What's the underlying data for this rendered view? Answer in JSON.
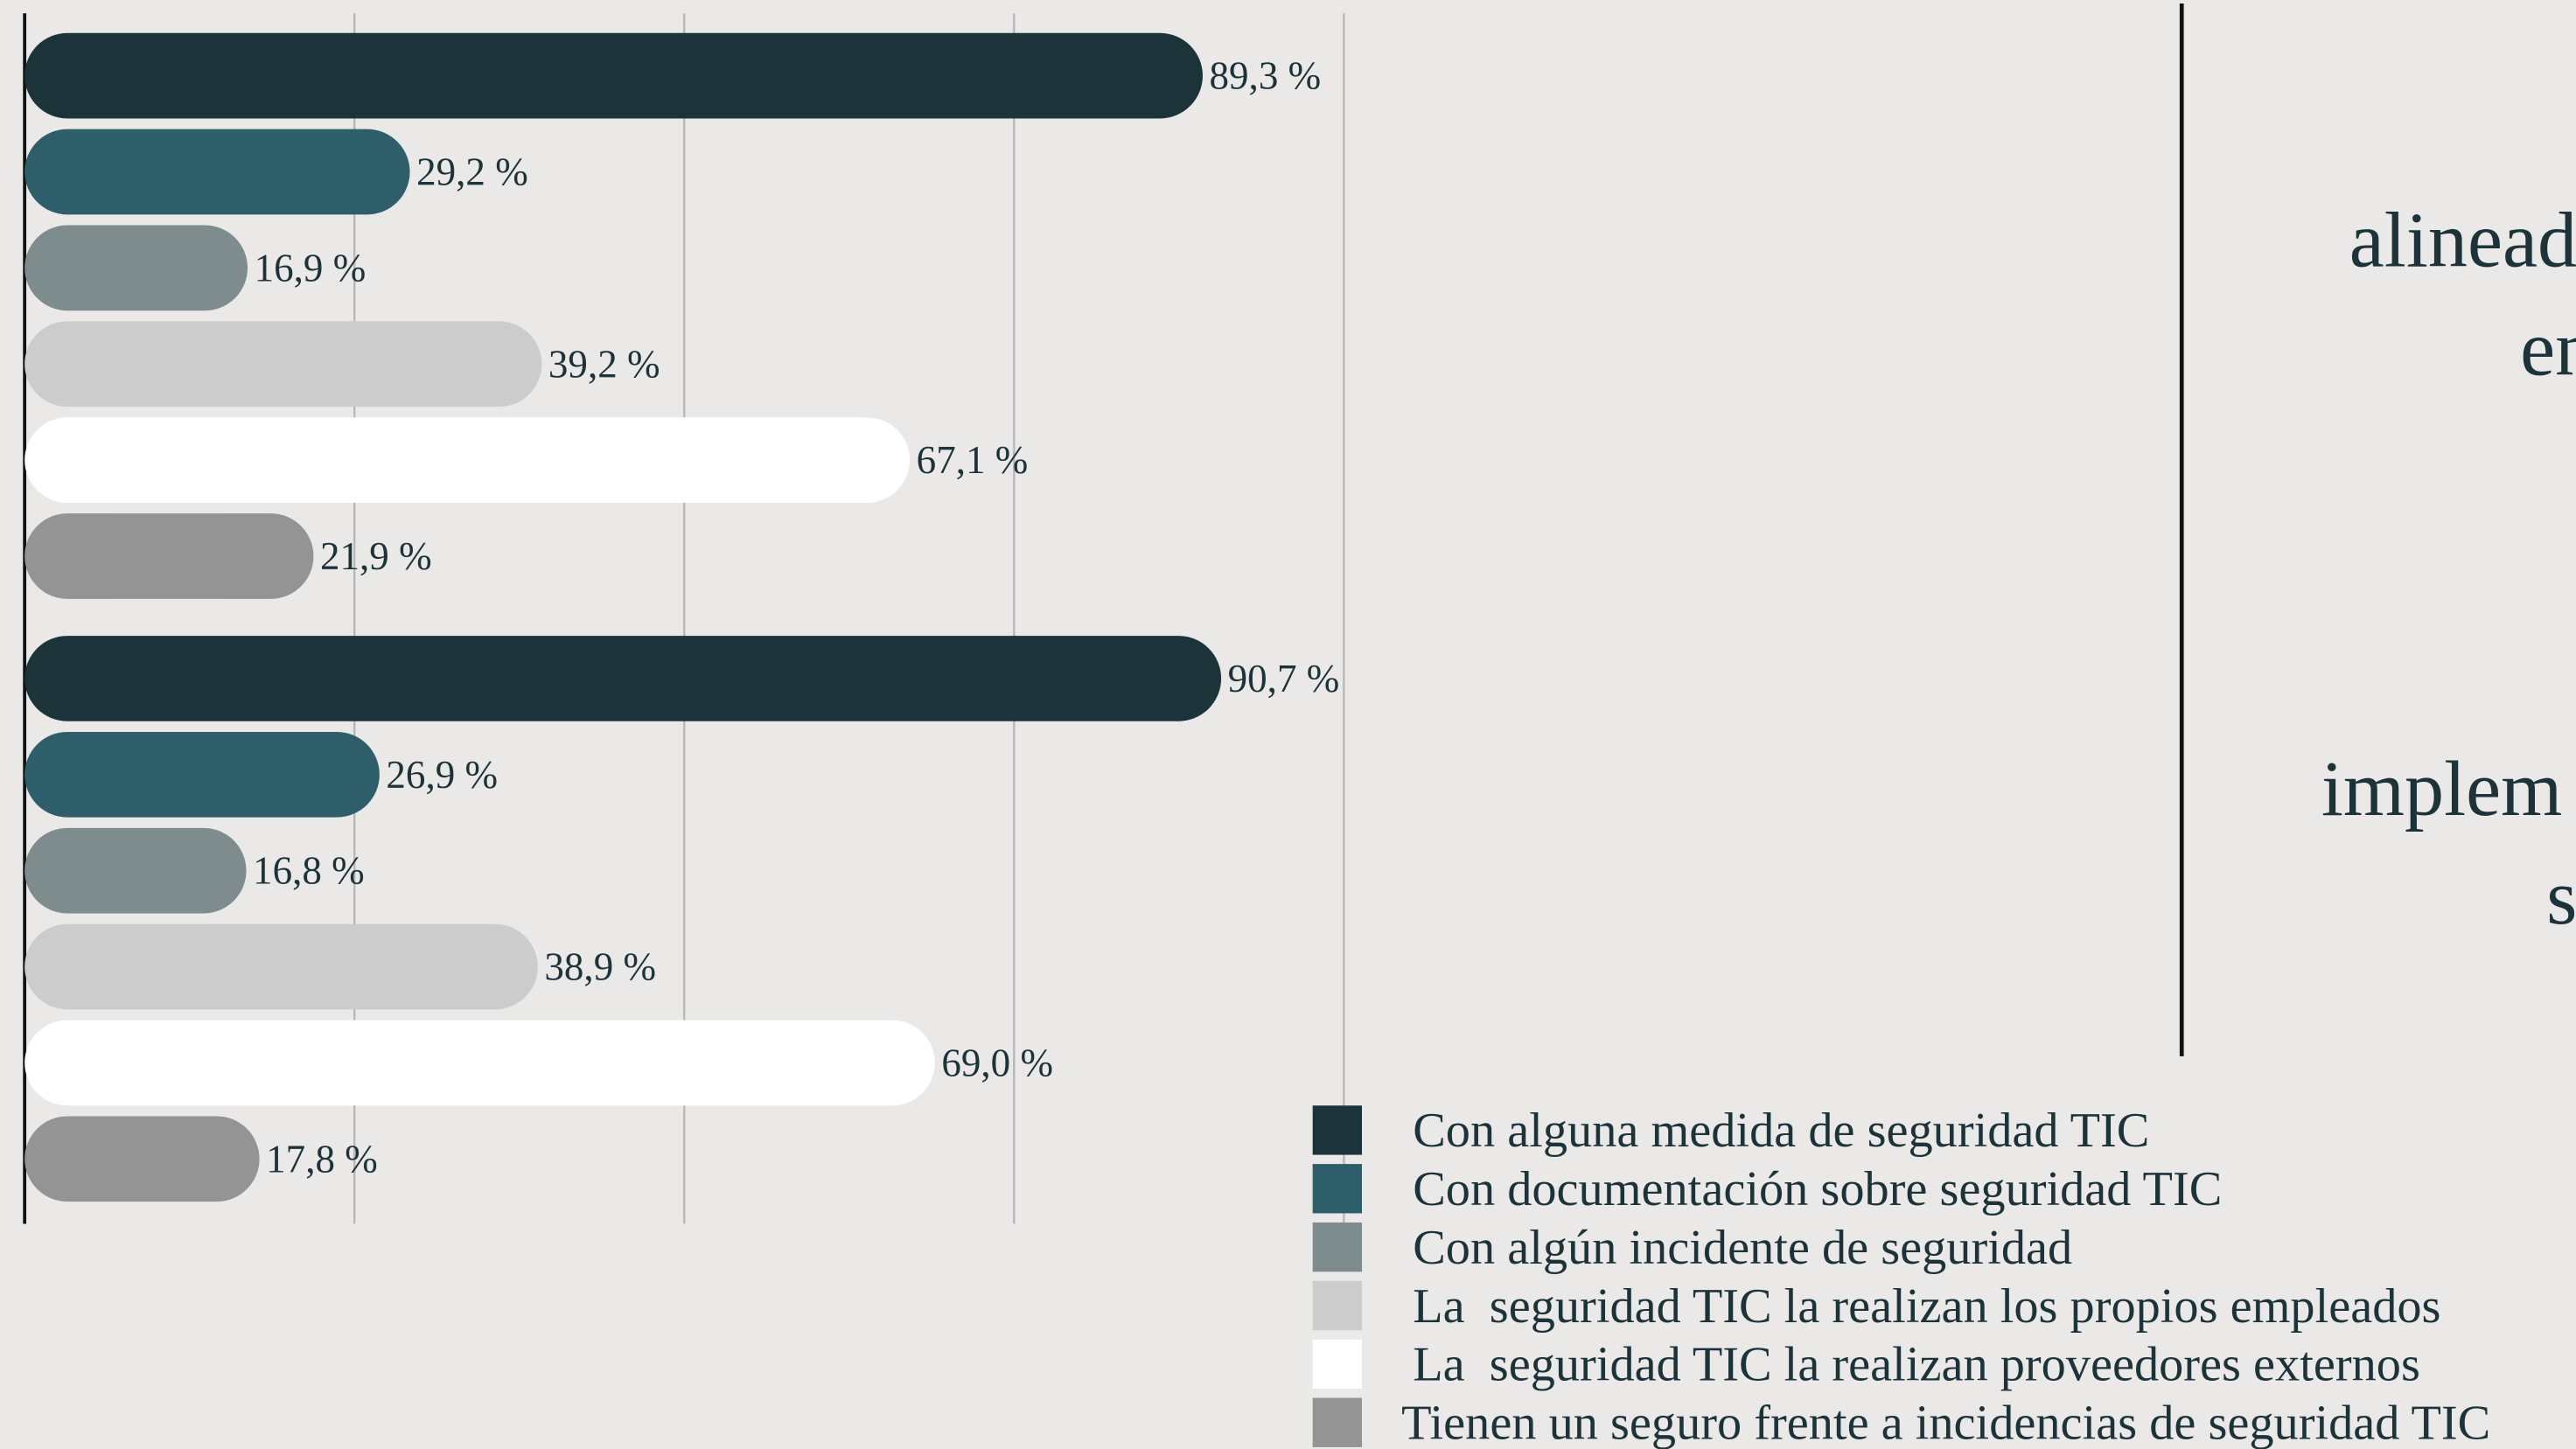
{
  "chart_data": {
    "type": "bar",
    "orientation": "horizontal",
    "categories": [
      null,
      null
    ],
    "series": [
      {
        "name": "Con alguna medida de seguridad TIC",
        "color": "#1c333a",
        "values": [
          89.3,
          90.7
        ],
        "value_labels": [
          "89,3 %",
          "90,7 %"
        ]
      },
      {
        "name": "Con documentación sobre seguridad TIC",
        "color": "#2e5e6a",
        "values": [
          29.2,
          26.9
        ],
        "value_labels": [
          "29,2 %",
          "26,9 %"
        ]
      },
      {
        "name": "Con algún incidente de seguridad",
        "color": "#7e8c8d",
        "values": [
          16.9,
          16.8
        ],
        "value_labels": [
          "16,9 %",
          "16,8 %"
        ]
      },
      {
        "name": "La  seguridad TIC la realizan los propios empleados",
        "color": "#cccccc",
        "values": [
          39.2,
          38.9
        ],
        "value_labels": [
          "39,2 %",
          "38,9 %"
        ]
      },
      {
        "name": "La  seguridad TIC la realizan proveedores externos",
        "color": "#ffffff",
        "values": [
          67.1,
          69.0
        ],
        "value_labels": [
          "67,1 %",
          "69,0 %"
        ]
      },
      {
        "name": "Tienen un seguro frente a incidencias de seguridad TIC",
        "color": "#949494",
        "values": [
          21.9,
          17.8
        ],
        "value_labels": [
          "21,9 %",
          "17,8 %"
        ]
      }
    ],
    "xlim": [
      0,
      100
    ],
    "xticks": [
      0,
      25,
      50,
      75,
      100
    ],
    "grid": true,
    "legend": "lower right",
    "annotations": [
      "alinead",
      "en",
      "implem",
      "s"
    ]
  }
}
